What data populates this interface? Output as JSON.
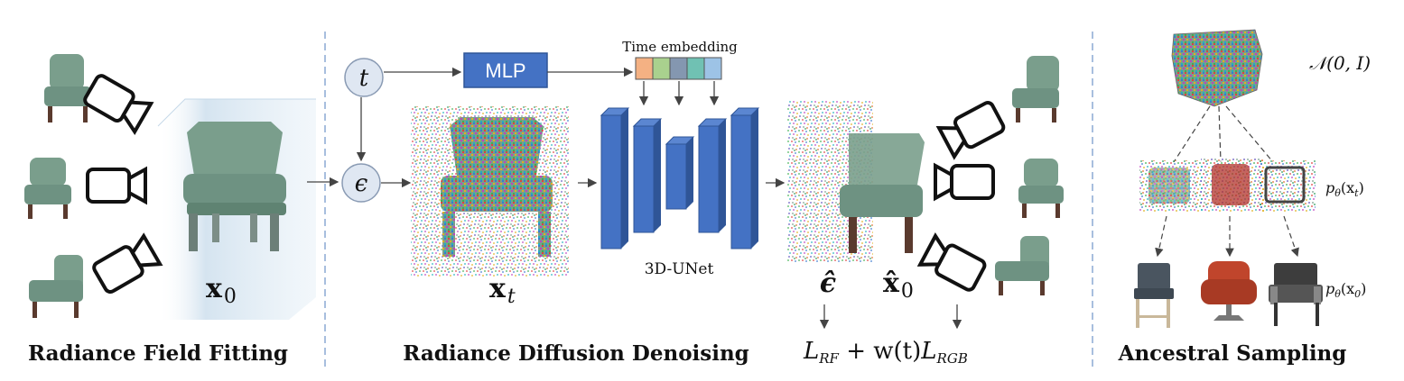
{
  "sections": {
    "fitting": {
      "title": "Radiance Field Fitting",
      "x0_main": "x",
      "x0_sub": "0"
    },
    "denoising": {
      "title": "Radiance Diffusion Denoising",
      "t_label": "t",
      "eps_label": "ϵ",
      "mlp_label": "MLP",
      "time_embedding_label": "Time embedding",
      "xt_main": "x",
      "xt_sub": "t",
      "unet_label": "3D-UNet",
      "eps_hat": "ϵ̂",
      "x0hat_main": "x̂",
      "x0hat_sub": "0",
      "loss": {
        "L1": "L",
        "L1_sub": "RF",
        "middle": " + w(t)",
        "L2": "L",
        "L2_sub": "RGB"
      }
    },
    "sampling": {
      "title": "Ancestral Sampling",
      "noise_label": "𝒩(0, I)",
      "pxt_label_pre": "p",
      "pxt_label_theta": "θ",
      "pxt_label_arg": "(x",
      "pxt_label_sub": "t",
      "pxt_label_end": ")",
      "px0_label_pre": "p",
      "px0_label_theta": "θ",
      "px0_label_arg": "(x",
      "px0_label_sub": "0",
      "px0_label_end": ")"
    }
  },
  "colors": {
    "chair": "#7a9e8c",
    "chair_dark": "#5b7d6c",
    "legs": "#5a3a2e",
    "unet_blue": "#4472c4",
    "circle_fill": "#dfe7f2",
    "divider": "#6f94c8",
    "embed": [
      "#f4b183",
      "#a9d18e",
      "#8497b0",
      "#70c1b3",
      "#9dc3e6"
    ]
  }
}
